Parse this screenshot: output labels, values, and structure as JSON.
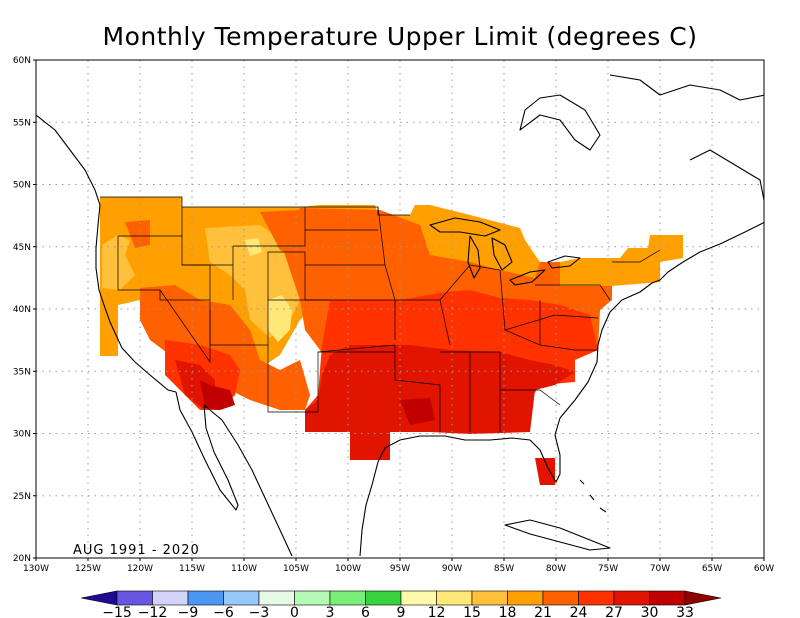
{
  "title": "Monthly Temperature Upper Limit (degrees C)",
  "period_label": "AUG 1991 - 2020",
  "map": {
    "lon_range": [
      -130,
      -60
    ],
    "lat_range": [
      20,
      60
    ],
    "lon_ticks": [
      {
        "value": -130,
        "label": "130W"
      },
      {
        "value": -125,
        "label": "125W"
      },
      {
        "value": -120,
        "label": "120W"
      },
      {
        "value": -115,
        "label": "115W"
      },
      {
        "value": -110,
        "label": "110W"
      },
      {
        "value": -105,
        "label": "105W"
      },
      {
        "value": -100,
        "label": "100W"
      },
      {
        "value": -95,
        "label": "95W"
      },
      {
        "value": -90,
        "label": "90W"
      },
      {
        "value": -85,
        "label": "85W"
      },
      {
        "value": -80,
        "label": "80W"
      },
      {
        "value": -75,
        "label": "75W"
      },
      {
        "value": -70,
        "label": "70W"
      },
      {
        "value": -65,
        "label": "65W"
      },
      {
        "value": -60,
        "label": "60W"
      }
    ],
    "lat_ticks": [
      {
        "value": 20,
        "label": "20N"
      },
      {
        "value": 25,
        "label": "25N"
      },
      {
        "value": 30,
        "label": "30N"
      },
      {
        "value": 35,
        "label": "35N"
      },
      {
        "value": 40,
        "label": "40N"
      },
      {
        "value": 45,
        "label": "45N"
      },
      {
        "value": 50,
        "label": "50N"
      },
      {
        "value": 55,
        "label": "55N"
      },
      {
        "value": 60,
        "label": "60N"
      }
    ],
    "grid": true
  },
  "colorbar": {
    "labels": [
      "-15",
      "-12",
      "-9",
      "-6",
      "-3",
      "0",
      "3",
      "6",
      "9",
      "12",
      "15",
      "18",
      "21",
      "24",
      "27",
      "30",
      "33"
    ],
    "low_end_color": "#1e0a96",
    "high_end_color": "#8c0000",
    "colors": [
      "#6a55e0",
      "#d4d4fa",
      "#4a96f0",
      "#96c8fa",
      "#e6fae6",
      "#b4fab4",
      "#78f078",
      "#37d23c",
      "#fffaaa",
      "#ffe878",
      "#ffc03c",
      "#ffa000",
      "#ff6000",
      "#ff3200",
      "#e11400",
      "#c00000"
    ]
  },
  "temperature_zones_legend": {
    "18-21": "#ffa000",
    "21-24": "#ff6000",
    "24-27": "#ff3200",
    "27-30": "#e11400",
    "30-33": "#c00000",
    "15-18": "#ffc03c",
    "12-15": "#ffe878"
  }
}
